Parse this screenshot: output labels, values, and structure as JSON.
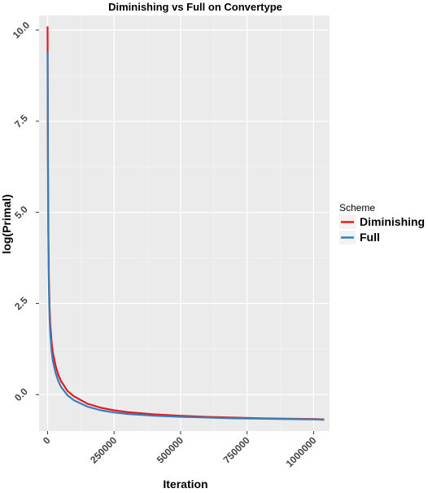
{
  "chart_data": {
    "type": "line",
    "title": "Diminishing vs Full on Convertype",
    "xlabel": "Iteration",
    "ylabel": "log(Primal)",
    "xlim": [
      -32000,
      1060000
    ],
    "ylim": [
      -1.0,
      10.4
    ],
    "x_ticks": [
      0,
      250000,
      500000,
      750000,
      1000000
    ],
    "x_tick_labels": [
      "0",
      "250000",
      "500000",
      "750000",
      "1000000"
    ],
    "y_ticks": [
      0.0,
      2.5,
      5.0,
      7.5,
      10.0
    ],
    "y_tick_labels": [
      "0.0",
      "2.5",
      "5.0",
      "7.5",
      "10.0"
    ],
    "grid": true,
    "legend": {
      "title": "Scheme",
      "position": "right"
    },
    "series": [
      {
        "name": "Diminishing",
        "color": "#e41a1c",
        "x": [
          0,
          500,
          1000,
          2000,
          3000,
          5000,
          7500,
          10000,
          15000,
          20000,
          30000,
          40000,
          50000,
          75000,
          100000,
          150000,
          200000,
          250000,
          300000,
          400000,
          500000,
          600000,
          700000,
          800000,
          900000,
          1000000,
          1040000
        ],
        "y": [
          10.1,
          8.9,
          7.6,
          5.7,
          4.5,
          3.2,
          2.4,
          1.95,
          1.45,
          1.15,
          0.8,
          0.55,
          0.38,
          0.1,
          -0.05,
          -0.25,
          -0.36,
          -0.43,
          -0.48,
          -0.54,
          -0.58,
          -0.61,
          -0.63,
          -0.65,
          -0.66,
          -0.67,
          -0.68
        ]
      },
      {
        "name": "Full",
        "color": "#377eb8",
        "x": [
          0,
          500,
          1000,
          2000,
          3000,
          5000,
          7500,
          10000,
          15000,
          20000,
          30000,
          40000,
          50000,
          75000,
          100000,
          150000,
          200000,
          250000,
          300000,
          400000,
          500000,
          600000,
          700000,
          800000,
          900000,
          1000000,
          1040000
        ],
        "y": [
          9.4,
          8.3,
          7.0,
          5.2,
          4.1,
          2.9,
          2.15,
          1.7,
          1.2,
          0.92,
          0.6,
          0.38,
          0.22,
          -0.02,
          -0.16,
          -0.33,
          -0.43,
          -0.49,
          -0.53,
          -0.58,
          -0.61,
          -0.63,
          -0.65,
          -0.66,
          -0.67,
          -0.68,
          -0.69
        ]
      }
    ]
  }
}
